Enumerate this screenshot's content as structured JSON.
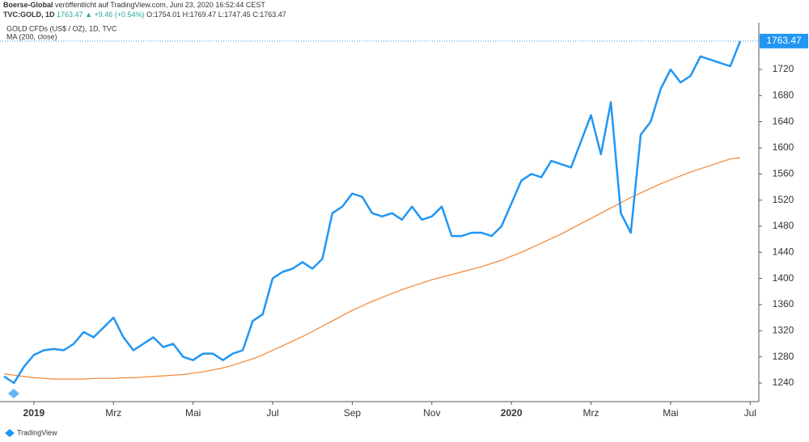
{
  "header": {
    "publisher": "Boerse-Global",
    "published": "veröffentlicht auf TradingView.com, Juni 23, 2020 16:52:44 CEST",
    "symbol": "TVC:GOLD, 1D",
    "last": "1763.47",
    "change": "▲ +9.46 (+0.54%)",
    "ohlc": [
      "O:1754.01",
      "H:1769.47",
      "L:1747.45",
      "C:1763.47"
    ]
  },
  "footer": "TradingView",
  "chart_data": {
    "type": "line",
    "categories": [
      null,
      null,
      null,
      "2019",
      null,
      null,
      null,
      null,
      null,
      null,
      null,
      "Mrz",
      null,
      null,
      null,
      null,
      null,
      null,
      null,
      "Mai",
      null,
      null,
      null,
      null,
      null,
      null,
      null,
      "Jul",
      null,
      null,
      null,
      null,
      null,
      null,
      null,
      "Sep",
      null,
      null,
      null,
      null,
      null,
      null,
      null,
      "Nov",
      null,
      null,
      null,
      null,
      null,
      null,
      null,
      "2020",
      null,
      null,
      null,
      null,
      null,
      null,
      null,
      "Mrz",
      null,
      null,
      null,
      null,
      null,
      null,
      null,
      "Mai",
      null,
      null,
      null,
      null,
      null,
      null,
      null,
      "Jul"
    ],
    "series": [
      {
        "name": "GOLD CFDs (US$ / OZ), 1D, TVC",
        "color": "#2196f3",
        "values": [
          1250,
          1240,
          1265,
          1283,
          1290,
          1292,
          1290,
          1300,
          1318,
          1310,
          1325,
          1340,
          1310,
          1290,
          1300,
          1310,
          1295,
          1300,
          1280,
          1275,
          1285,
          1285,
          1275,
          1285,
          1290,
          1335,
          1345,
          1400,
          1410,
          1415,
          1425,
          1415,
          1430,
          1500,
          1510,
          1530,
          1525,
          1500,
          1495,
          1500,
          1490,
          1510,
          1490,
          1495,
          1510,
          1465,
          1465,
          1470,
          1470,
          1465,
          1480,
          1515,
          1550,
          1560,
          1555,
          1580,
          1575,
          1570,
          1610,
          1650,
          1590,
          1670,
          1500,
          1470,
          1620,
          1640,
          1690,
          1720,
          1700,
          1710,
          1740,
          1735,
          1730,
          1725,
          1763.47,
          null
        ]
      },
      {
        "name": "MA (200, close)",
        "color": "#f5852f",
        "values": [
          1254,
          1252,
          1250,
          1248,
          1247,
          1246,
          1246,
          1246,
          1246,
          1247,
          1247,
          1247,
          1248,
          1248,
          1249,
          1250,
          1251,
          1252,
          1253,
          1255,
          1257,
          1260,
          1263,
          1267,
          1272,
          1277,
          1283,
          1290,
          1297,
          1304,
          1311,
          1319,
          1327,
          1335,
          1343,
          1351,
          1358,
          1365,
          1371,
          1377,
          1383,
          1388,
          1393,
          1398,
          1402,
          1406,
          1410,
          1414,
          1418,
          1423,
          1428,
          1434,
          1440,
          1447,
          1454,
          1461,
          1468,
          1476,
          1484,
          1492,
          1500,
          1508,
          1516,
          1524,
          1531,
          1538,
          1545,
          1551,
          1557,
          1563,
          1568,
          1573,
          1578,
          1583,
          1585,
          null
        ]
      }
    ],
    "price_label": "1763.47",
    "ylim": [
      1211.5,
      1791.7
    ],
    "yticks": [
      1240,
      1280,
      1320,
      1360,
      1400,
      1440,
      1480,
      1520,
      1560,
      1600,
      1640,
      1680,
      1720
    ]
  }
}
